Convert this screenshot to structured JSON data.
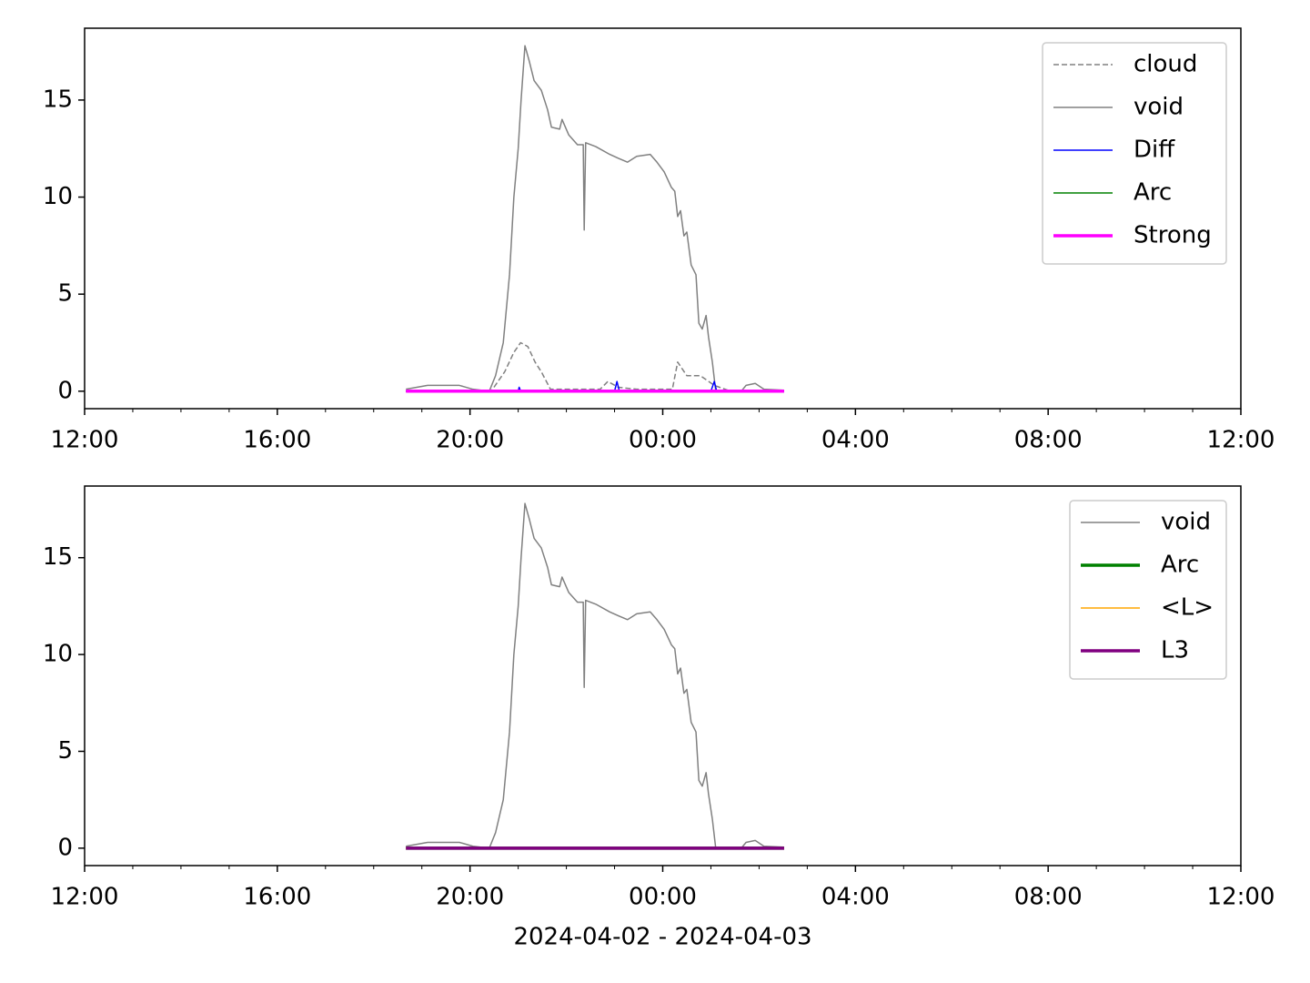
{
  "chart_data": [
    {
      "type": "line",
      "ylim": [
        -0.9,
        18.7
      ],
      "yticks": [
        0,
        5,
        10,
        15
      ],
      "xlim": [
        12,
        36
      ],
      "xticks": [
        {
          "value": 12,
          "label": "12:00"
        },
        {
          "value": 16,
          "label": "16:00"
        },
        {
          "value": 20,
          "label": "20:00"
        },
        {
          "value": 24,
          "label": "00:00"
        },
        {
          "value": 28,
          "label": "04:00"
        },
        {
          "value": 32,
          "label": "08:00"
        },
        {
          "value": 36,
          "label": "12:00"
        }
      ],
      "xminorticks": [
        13,
        14,
        15,
        17,
        18,
        19,
        21,
        22,
        23,
        25,
        26,
        27,
        29,
        30,
        31,
        33,
        34,
        35
      ],
      "legend": "upper right",
      "series": [
        {
          "name": "cloud",
          "color": "#808080",
          "linestyle": "dashed",
          "linewidth": 1.5,
          "x": [
            18.67,
            20.44,
            20.72,
            20.91,
            21.05,
            21.2,
            21.35,
            21.48,
            21.67,
            22.7,
            22.86,
            23.08,
            23.46,
            24.2,
            24.31,
            24.5,
            24.78,
            25.07,
            25.35,
            26.52
          ],
          "values": [
            0,
            0,
            1,
            2,
            2.5,
            2.3,
            1.5,
            1,
            0.1,
            0.1,
            0.5,
            0.2,
            0.1,
            0.1,
            1.5,
            0.8,
            0.8,
            0.3,
            0.05,
            0
          ]
        },
        {
          "name": "void",
          "color": "#808080",
          "linestyle": "solid",
          "linewidth": 1.5,
          "x": [
            18.67,
            19.12,
            19.78,
            20.06,
            20.4,
            20.53,
            20.69,
            20.82,
            20.91,
            21.0,
            21.06,
            21.14,
            21.23,
            21.33,
            21.48,
            21.61,
            21.69,
            21.86,
            21.91,
            22.05,
            22.23,
            22.35,
            22.37,
            22.4,
            22.61,
            22.9,
            23.08,
            23.27,
            23.46,
            23.74,
            23.88,
            24.03,
            24.18,
            24.25,
            24.31,
            24.37,
            24.44,
            24.5,
            24.59,
            24.69,
            24.75,
            24.82,
            24.9,
            24.95,
            25.03,
            25.1,
            25.63,
            25.73,
            25.92,
            26.1,
            26.52
          ],
          "values": [
            0.1,
            0.3,
            0.3,
            0.1,
            0,
            0.8,
            2.5,
            6,
            10,
            12.5,
            15,
            17.8,
            17,
            16,
            15.5,
            14.5,
            13.6,
            13.5,
            14,
            13.2,
            12.7,
            12.7,
            8.3,
            12.8,
            12.6,
            12.2,
            12,
            11.8,
            12.1,
            12.2,
            11.8,
            11.3,
            10.5,
            10.3,
            9,
            9.3,
            8,
            8.2,
            6.5,
            6,
            3.5,
            3.2,
            3.9,
            2.8,
            1.5,
            0,
            0,
            0.3,
            0.4,
            0.1,
            0.05
          ]
        },
        {
          "name": "Diff",
          "color": "#0000ff",
          "linestyle": "solid",
          "linewidth": 1.5,
          "x": [
            18.67,
            21.0,
            21.02,
            21.05,
            23.0,
            23.05,
            23.1,
            25.0,
            25.07,
            25.12,
            26.52
          ],
          "values": [
            0,
            0,
            0.2,
            0,
            0,
            0.5,
            0,
            0,
            0.5,
            0,
            0
          ]
        },
        {
          "name": "Arc",
          "color": "#008000",
          "linestyle": "solid",
          "linewidth": 1.5,
          "x": [
            18.67,
            26.52
          ],
          "values": [
            0,
            0
          ]
        },
        {
          "name": "Strong",
          "color": "#ff00ff",
          "linestyle": "solid",
          "linewidth": 3.5,
          "x": [
            18.67,
            26.52
          ],
          "values": [
            0,
            0
          ]
        }
      ]
    },
    {
      "type": "line",
      "xlabel": "2024-04-02 - 2024-04-03",
      "ylim": [
        -0.9,
        18.7
      ],
      "yticks": [
        0,
        5,
        10,
        15
      ],
      "xlim": [
        12,
        36
      ],
      "xticks": [
        {
          "value": 12,
          "label": "12:00"
        },
        {
          "value": 16,
          "label": "16:00"
        },
        {
          "value": 20,
          "label": "20:00"
        },
        {
          "value": 24,
          "label": "00:00"
        },
        {
          "value": 28,
          "label": "04:00"
        },
        {
          "value": 32,
          "label": "08:00"
        },
        {
          "value": 36,
          "label": "12:00"
        }
      ],
      "xminorticks": [
        13,
        14,
        15,
        17,
        18,
        19,
        21,
        22,
        23,
        25,
        26,
        27,
        29,
        30,
        31,
        33,
        34,
        35
      ],
      "legend": "upper right",
      "series": [
        {
          "name": "void",
          "color": "#808080",
          "linestyle": "solid",
          "linewidth": 1.5,
          "x": [
            18.67,
            19.12,
            19.78,
            20.06,
            20.4,
            20.53,
            20.69,
            20.82,
            20.91,
            21.0,
            21.06,
            21.14,
            21.23,
            21.33,
            21.48,
            21.61,
            21.69,
            21.86,
            21.91,
            22.05,
            22.23,
            22.35,
            22.37,
            22.4,
            22.61,
            22.9,
            23.08,
            23.27,
            23.46,
            23.74,
            23.88,
            24.03,
            24.18,
            24.25,
            24.31,
            24.37,
            24.44,
            24.5,
            24.59,
            24.69,
            24.75,
            24.82,
            24.9,
            24.95,
            25.03,
            25.1,
            25.63,
            25.73,
            25.92,
            26.1,
            26.52
          ],
          "values": [
            0.1,
            0.3,
            0.3,
            0.1,
            0,
            0.8,
            2.5,
            6,
            10,
            12.5,
            15,
            17.8,
            17,
            16,
            15.5,
            14.5,
            13.6,
            13.5,
            14,
            13.2,
            12.7,
            12.7,
            8.3,
            12.8,
            12.6,
            12.2,
            12,
            11.8,
            12.1,
            12.2,
            11.8,
            11.3,
            10.5,
            10.3,
            9,
            9.3,
            8,
            8.2,
            6.5,
            6,
            3.5,
            3.2,
            3.9,
            2.8,
            1.5,
            0,
            0,
            0.3,
            0.4,
            0.1,
            0.05
          ]
        },
        {
          "name": "Arc",
          "color": "#008000",
          "linestyle": "solid",
          "linewidth": 3.5,
          "x": [
            18.67,
            26.52
          ],
          "values": [
            0,
            0
          ]
        },
        {
          "name": "<L>",
          "color": "#ffa500",
          "linestyle": "solid",
          "linewidth": 1.5,
          "x": [
            18.67,
            26.52
          ],
          "values": [
            0,
            0
          ]
        },
        {
          "name": "L3",
          "color": "#800080",
          "linestyle": "solid",
          "linewidth": 3.5,
          "x": [
            18.67,
            26.52
          ],
          "values": [
            0,
            0
          ]
        }
      ]
    }
  ]
}
